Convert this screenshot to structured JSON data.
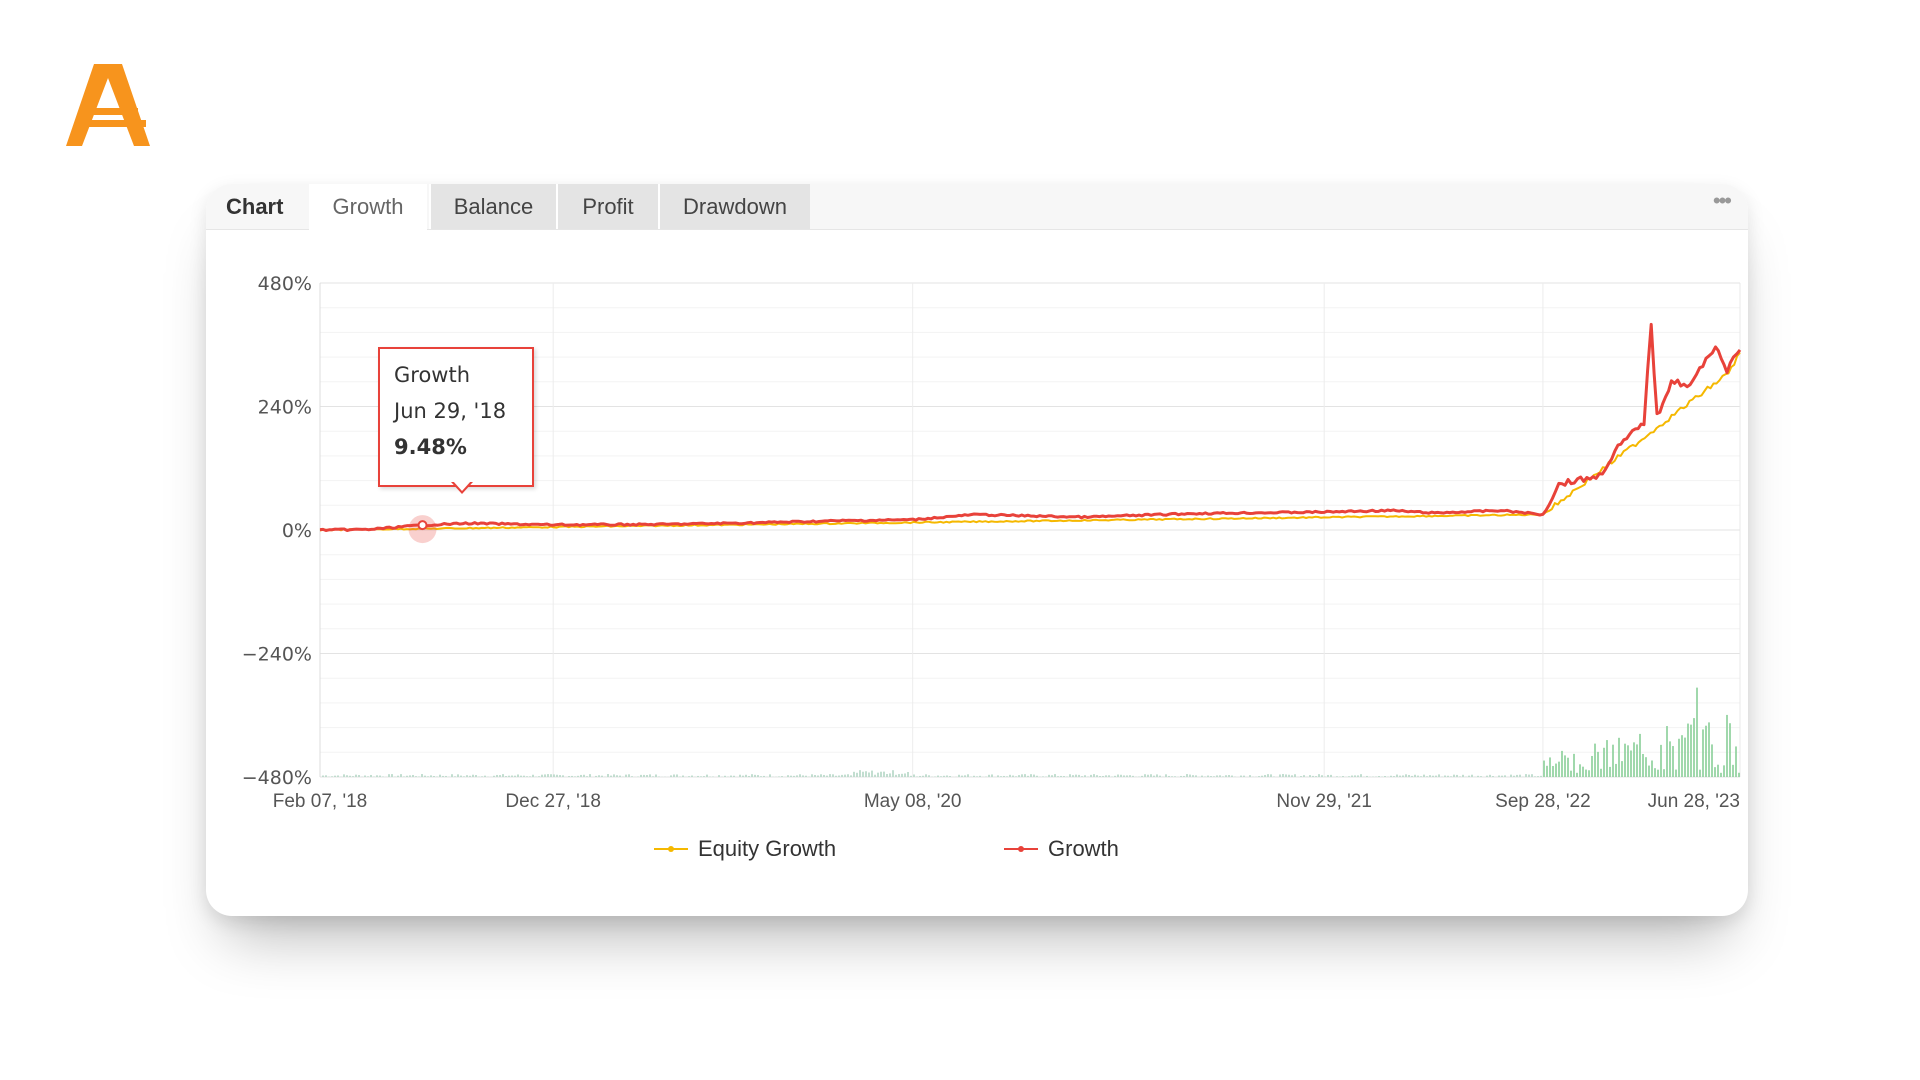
{
  "brand": {
    "logo_letter": "A",
    "color": "#f7941d"
  },
  "tabs": {
    "title": "Chart",
    "items": [
      "Growth",
      "Balance",
      "Profit",
      "Drawdown"
    ],
    "active": "Growth",
    "more_label": "•••"
  },
  "tooltip": {
    "series": "Growth",
    "date": "Jun 29, '18",
    "value": "9.48%"
  },
  "legend": [
    {
      "label": "Equity Growth",
      "color": "#f5b800"
    },
    {
      "label": "Growth",
      "color": "#e8423a"
    }
  ],
  "chart_data": {
    "type": "line",
    "title": "",
    "xlabel": "",
    "ylabel": "",
    "y_ticks": [
      "480%",
      "240%",
      "0%",
      "−240%",
      "−480%"
    ],
    "x_ticks": [
      "Feb 07, '18",
      "Dec 27, '18",
      "May 08, '20",
      "Nov 29, '21",
      "Sep 28, '22",
      "Jun 28, '23"
    ],
    "x_range": [
      "2018-02-07",
      "2023-06-28"
    ],
    "ylim": [
      -480,
      480
    ],
    "grid": true,
    "legend_position": "bottom",
    "series": [
      {
        "name": "Growth",
        "color": "#e8423a",
        "points": [
          [
            "2018-02-07",
            0
          ],
          [
            "2018-04-15",
            1
          ],
          [
            "2018-06-29",
            9.48
          ],
          [
            "2018-09-01",
            13
          ],
          [
            "2018-12-27",
            10
          ],
          [
            "2019-06-01",
            11
          ],
          [
            "2019-10-01",
            14
          ],
          [
            "2020-02-01",
            18
          ],
          [
            "2020-05-08",
            20
          ],
          [
            "2020-08-01",
            30
          ],
          [
            "2021-01-01",
            25
          ],
          [
            "2021-06-01",
            32
          ],
          [
            "2021-11-29",
            35
          ],
          [
            "2022-03-01",
            38
          ],
          [
            "2022-05-01",
            33
          ],
          [
            "2022-08-01",
            38
          ],
          [
            "2022-09-28",
            30
          ],
          [
            "2022-10-20",
            90
          ],
          [
            "2022-12-15",
            105
          ],
          [
            "2023-01-10",
            160
          ],
          [
            "2023-02-15",
            210
          ],
          [
            "2023-02-25",
            400
          ],
          [
            "2023-03-05",
            220
          ],
          [
            "2023-03-25",
            290
          ],
          [
            "2023-04-20",
            280
          ],
          [
            "2023-05-25",
            360
          ],
          [
            "2023-06-10",
            310
          ],
          [
            "2023-06-28",
            350
          ]
        ]
      },
      {
        "name": "Equity Growth",
        "color": "#f5b800",
        "points": [
          [
            "2018-02-07",
            0
          ],
          [
            "2022-09-28",
            30
          ],
          [
            "2023-06-12",
            305
          ],
          [
            "2023-06-28",
            345
          ]
        ]
      }
    ]
  }
}
